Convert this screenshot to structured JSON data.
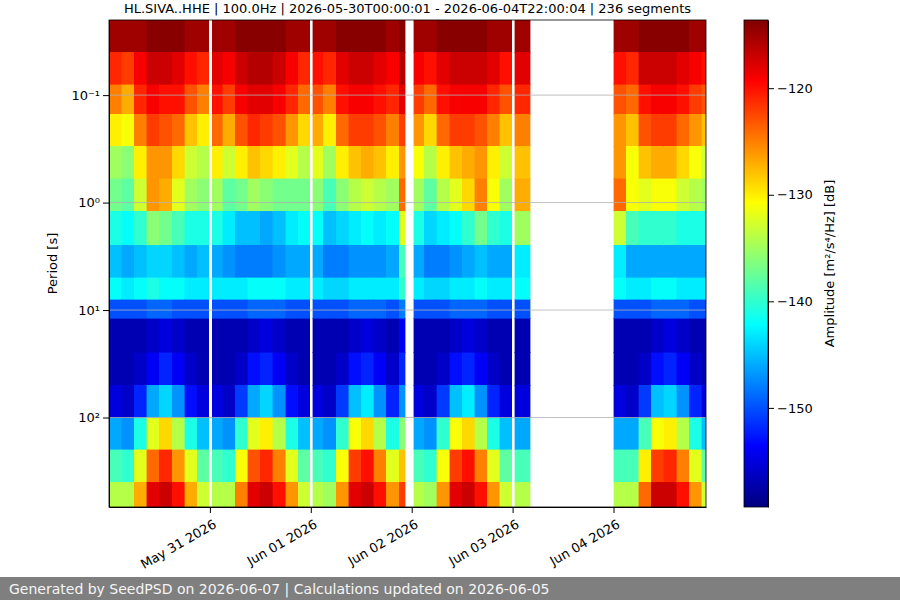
{
  "chart_data": {
    "type": "heatmap",
    "title": "HL.SIVA..HHE | 100.0Hz | 2026-05-30T00:00:01 - 2026-06-04T22:00:04 | 236 segments",
    "ylabel": "Period [s]",
    "footer": "Generated by SeedPSD on 2026-06-07 | Calculations updated on 2026-06-05",
    "log": "y",
    "grid": "y",
    "color": "jet",
    "xlim": [
      "2026-05-30T00:00",
      "2026-06-04T22:00"
    ],
    "xticks": [
      {
        "value": "2026-05-31T00:00",
        "label": "May 31 2026"
      },
      {
        "value": "2026-06-01T00:00",
        "label": "Jun 01 2026"
      },
      {
        "value": "2026-06-02T00:00",
        "label": "Jun 02 2026"
      },
      {
        "value": "2026-06-03T00:00",
        "label": "Jun 03 2026"
      },
      {
        "value": "2026-06-04T00:00",
        "label": "Jun 04 2026"
      }
    ],
    "ylim": [
      0.02,
      680
    ],
    "yticks": [
      {
        "value": 0.1,
        "label": "10⁻¹"
      },
      {
        "value": 1,
        "label": "10⁰"
      },
      {
        "value": 10,
        "label": "10¹"
      },
      {
        "value": 100,
        "label": "10²"
      }
    ],
    "x_edges": [
      "2026-05-30T00:00",
      "2026-05-30T03:00",
      "2026-05-30T06:00",
      "2026-05-30T09:00",
      "2026-05-30T12:00",
      "2026-05-30T15:00",
      "2026-05-30T18:00",
      "2026-05-30T21:00",
      "2026-05-30T23:45",
      "2026-05-31T00:30",
      "2026-05-31T03:00",
      "2026-05-31T06:00",
      "2026-05-31T09:00",
      "2026-05-31T12:00",
      "2026-05-31T15:00",
      "2026-05-31T18:00",
      "2026-05-31T21:00",
      "2026-05-31T23:45",
      "2026-06-01T00:30",
      "2026-06-01T03:00",
      "2026-06-01T06:00",
      "2026-06-01T09:00",
      "2026-06-01T12:00",
      "2026-06-01T15:00",
      "2026-06-01T18:00",
      "2026-06-01T21:00",
      "2026-06-01T22:30",
      "2026-06-02T00:30",
      "2026-06-02T03:00",
      "2026-06-02T06:00",
      "2026-06-02T09:00",
      "2026-06-02T12:00",
      "2026-06-02T15:00",
      "2026-06-02T18:00",
      "2026-06-02T21:00",
      "2026-06-02T23:45",
      "2026-06-03T00:30",
      "2026-06-03T04:15",
      "2026-06-04T00:00",
      "2026-06-04T03:00",
      "2026-06-04T06:00",
      "2026-06-04T09:00",
      "2026-06-04T12:00",
      "2026-06-04T15:00",
      "2026-06-04T18:00",
      "2026-06-04T21:00",
      "2026-06-04T22:00"
    ],
    "y_edges": [
      0.02,
      0.04,
      0.08,
      0.15,
      0.3,
      0.6,
      1.2,
      2.5,
      5,
      8,
      12,
      25,
      50,
      100,
      200,
      400,
      680
    ],
    "values": [
      [
        -115,
        -121,
        -125,
        -130,
        -135,
        -137,
        -141,
        -145,
        -142,
        -150,
        -157,
        -157,
        -155,
        -146,
        -139,
        -134
      ],
      [
        -115,
        -122,
        -127,
        -131,
        -136,
        -138,
        -142,
        -146,
        -143,
        -150,
        -157,
        -157,
        -156,
        -147,
        -140,
        -134
      ],
      [
        -115,
        -119,
        -121,
        -125,
        -130,
        -133,
        -140,
        -145,
        -142,
        -150,
        -157,
        -156,
        -152,
        -141,
        -132,
        -127
      ],
      [
        -114,
        -117,
        -119,
        -122,
        -126,
        -126,
        -136,
        -144,
        -141,
        -149,
        -156,
        -154,
        -146,
        -132,
        -124,
        -118
      ],
      [
        -114,
        -117,
        -120,
        -123,
        -126,
        -127,
        -137,
        -144,
        -142,
        -149,
        -155,
        -152,
        -144,
        -129,
        -121,
        -117
      ],
      [
        -114,
        -118,
        -120,
        -124,
        -129,
        -132,
        -139,
        -145,
        -142,
        -150,
        -156,
        -154,
        -147,
        -134,
        -126,
        -120
      ],
      [
        -115,
        -120,
        -123,
        -128,
        -133,
        -135,
        -141,
        -146,
        -143,
        -150,
        -157,
        -156,
        -153,
        -141,
        -132,
        -127
      ],
      [
        -115,
        -121,
        -125,
        -130,
        -134,
        -136,
        -141,
        -145,
        -143,
        -150,
        -157,
        -157,
        -155,
        -145,
        -138,
        -133
      ],
      null,
      [
        -115,
        -118,
        -120,
        -124,
        -130,
        -135,
        -141,
        -146,
        -143,
        -150,
        -157,
        -157,
        -155,
        -146,
        -139,
        -134
      ],
      [
        -115,
        -119,
        -122,
        -127,
        -133,
        -138,
        -143,
        -147,
        -143,
        -150,
        -157,
        -157,
        -156,
        -147,
        -140,
        -134
      ],
      [
        -114,
        -117,
        -119,
        -123,
        -130,
        -137,
        -145,
        -148,
        -143,
        -150,
        -157,
        -156,
        -151,
        -140,
        -131,
        -125
      ],
      [
        -114,
        -116,
        -118,
        -121,
        -128,
        -135,
        -145,
        -148,
        -142,
        -149,
        -156,
        -153,
        -146,
        -132,
        -123,
        -118
      ],
      [
        -114,
        -116,
        -118,
        -122,
        -129,
        -136,
        -146,
        -148,
        -142,
        -149,
        -155,
        -152,
        -144,
        -130,
        -121,
        -117
      ],
      [
        -114,
        -117,
        -119,
        -123,
        -130,
        -137,
        -145,
        -147,
        -142,
        -149,
        -156,
        -154,
        -147,
        -134,
        -125,
        -120
      ],
      [
        -115,
        -119,
        -121,
        -126,
        -132,
        -137,
        -143,
        -146,
        -143,
        -150,
        -157,
        -156,
        -153,
        -141,
        -132,
        -126
      ],
      [
        -115,
        -121,
        -124,
        -129,
        -134,
        -137,
        -142,
        -146,
        -143,
        -150,
        -157,
        -157,
        -155,
        -145,
        -138,
        -133
      ],
      null,
      [
        -115,
        -120,
        -123,
        -127,
        -132,
        -136,
        -142,
        -146,
        -143,
        -150,
        -157,
        -157,
        -155,
        -146,
        -139,
        -134
      ],
      [
        -115,
        -121,
        -125,
        -130,
        -135,
        -139,
        -145,
        -148,
        -144,
        -150,
        -157,
        -157,
        -156,
        -147,
        -140,
        -135
      ],
      [
        -114,
        -118,
        -120,
        -124,
        -130,
        -136,
        -144,
        -148,
        -144,
        -150,
        -157,
        -156,
        -151,
        -140,
        -131,
        -126
      ],
      [
        -114,
        -117,
        -119,
        -122,
        -128,
        -134,
        -143,
        -147,
        -143,
        -149,
        -156,
        -153,
        -145,
        -131,
        -122,
        -118
      ],
      [
        -114,
        -117,
        -119,
        -122,
        -127,
        -133,
        -142,
        -147,
        -143,
        -149,
        -155,
        -152,
        -143,
        -129,
        -120,
        -117
      ],
      [
        -114,
        -118,
        -120,
        -123,
        -128,
        -134,
        -143,
        -147,
        -143,
        -149,
        -156,
        -154,
        -147,
        -134,
        -125,
        -120
      ],
      [
        -115,
        -119,
        -121,
        -125,
        -130,
        -135,
        -142,
        -146,
        -143,
        -150,
        -157,
        -156,
        -152,
        -141,
        -132,
        -126
      ],
      [
        -114,
        -116,
        -118,
        -122,
        -126,
        -124,
        -132,
        -139,
        -140,
        -148,
        -154,
        -152,
        -147,
        -136,
        -128,
        -122
      ],
      null,
      [
        -115,
        -119,
        -122,
        -126,
        -131,
        -135,
        -141,
        -146,
        -143,
        -150,
        -157,
        -157,
        -155,
        -146,
        -139,
        -134
      ],
      [
        -115,
        -120,
        -124,
        -129,
        -134,
        -138,
        -144,
        -148,
        -144,
        -150,
        -157,
        -157,
        -156,
        -147,
        -140,
        -135
      ],
      [
        -114,
        -118,
        -120,
        -124,
        -130,
        -134,
        -143,
        -148,
        -144,
        -150,
        -157,
        -156,
        -151,
        -140,
        -131,
        -126
      ],
      [
        -114,
        -117,
        -119,
        -122,
        -128,
        -132,
        -142,
        -147,
        -143,
        -149,
        -156,
        -153,
        -145,
        -131,
        -122,
        -118
      ],
      [
        -114,
        -117,
        -119,
        -122,
        -127,
        -129,
        -140,
        -146,
        -143,
        -149,
        -155,
        -152,
        -143,
        -129,
        -120,
        -117
      ],
      [
        -114,
        -117,
        -119,
        -123,
        -126,
        -125,
        -137,
        -145,
        -142,
        -149,
        -156,
        -154,
        -147,
        -134,
        -125,
        -120
      ],
      [
        -115,
        -118,
        -121,
        -125,
        -130,
        -131,
        -140,
        -146,
        -143,
        -150,
        -157,
        -156,
        -152,
        -141,
        -132,
        -126
      ],
      [
        -115,
        -120,
        -123,
        -128,
        -133,
        -135,
        -141,
        -146,
        -143,
        -150,
        -157,
        -157,
        -155,
        -145,
        -138,
        -133
      ],
      null,
      [
        -115,
        -118,
        -121,
        -125,
        -128,
        -127,
        -135,
        -143,
        -142,
        -150,
        -157,
        -157,
        -155,
        -146,
        -139,
        -134
      ],
      null,
      [
        -115,
        -120,
        -123,
        -126,
        -126,
        -124,
        -133,
        -143,
        -142,
        -150,
        -157,
        -157,
        -155,
        -146,
        -139,
        -134
      ],
      [
        -115,
        -121,
        -124,
        -128,
        -131,
        -131,
        -139,
        -146,
        -143,
        -150,
        -157,
        -157,
        -156,
        -146,
        -139,
        -134
      ],
      [
        -114,
        -117,
        -120,
        -123,
        -128,
        -132,
        -140,
        -146,
        -143,
        -150,
        -157,
        -156,
        -151,
        -139,
        -130,
        -124
      ],
      [
        -114,
        -117,
        -119,
        -122,
        -127,
        -131,
        -140,
        -146,
        -142,
        -149,
        -156,
        -153,
        -145,
        -131,
        -122,
        -117
      ],
      [
        -114,
        -117,
        -119,
        -122,
        -127,
        -131,
        -140,
        -146,
        -142,
        -149,
        -155,
        -152,
        -144,
        -130,
        -121,
        -117
      ],
      [
        -114,
        -118,
        -120,
        -124,
        -129,
        -133,
        -141,
        -146,
        -143,
        -149,
        -156,
        -154,
        -147,
        -134,
        -125,
        -120
      ],
      [
        -115,
        -119,
        -122,
        -126,
        -131,
        -134,
        -141,
        -146,
        -143,
        -150,
        -157,
        -156,
        -152,
        -141,
        -132,
        -126
      ],
      [
        -115,
        -120,
        -123,
        -128,
        -133,
        -135,
        -141,
        -146,
        -143,
        -150,
        -157,
        -157,
        -155,
        -145,
        -138,
        -133
      ]
    ],
    "colorbar": {
      "label": "Amplitude [m²/s⁴/Hz] [dB]",
      "lim": [
        -159.3,
        -113.6
      ],
      "ticks": [
        {
          "value": -120,
          "label": "−120"
        },
        {
          "value": -130,
          "label": "−130"
        },
        {
          "value": -140,
          "label": "−140"
        },
        {
          "value": -150,
          "label": "−150"
        }
      ]
    }
  }
}
